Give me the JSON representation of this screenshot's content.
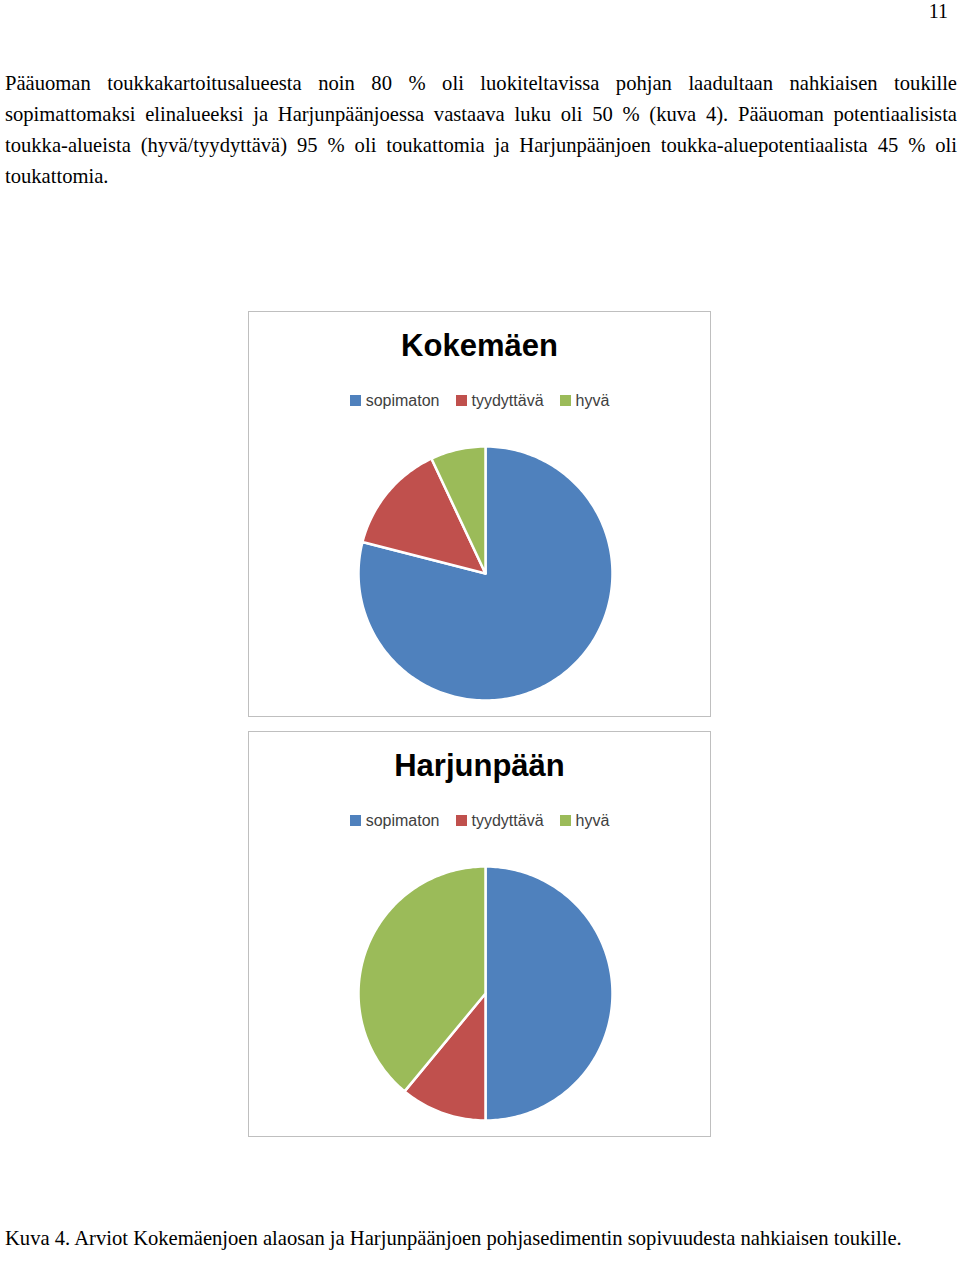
{
  "document": {
    "page_number": "11",
    "paragraph": "Pääuoman toukkakartoitusalueesta noin 80 % oli luokiteltavissa pohjan laadultaan nahkiaisen toukille sopimattomaksi elinalueeksi ja Harjunpäänjoessa vastaava luku oli 50 % (kuva 4). Pääuoman potentiaalisista toukka-alueista (hyvä/tyydyttävä) 95 % oli toukattomia ja Harjunpäänjoen toukka-aluepotentiaalista 45 % oli toukattomia.",
    "caption": "Kuva 4. Arviot Kokemäenjoen alaosan ja Harjunpäänjoen pohjasedimentin sopivuudesta nahkiaisen toukille."
  },
  "chart_data": [
    {
      "type": "pie",
      "title": "Kokemäen",
      "categories": [
        "sopimaton",
        "tyydyttävä",
        "hyvä"
      ],
      "values": [
        79,
        14,
        7
      ],
      "colors": [
        "#4f81bd",
        "#c0504d",
        "#9bbb59"
      ],
      "legend": "top"
    },
    {
      "type": "pie",
      "title": "Harjunpään",
      "categories": [
        "sopimaton",
        "tyydyttävä",
        "hyvä"
      ],
      "values": [
        50,
        11,
        39
      ],
      "colors": [
        "#4f81bd",
        "#c0504d",
        "#9bbb59"
      ],
      "legend": "top"
    }
  ]
}
